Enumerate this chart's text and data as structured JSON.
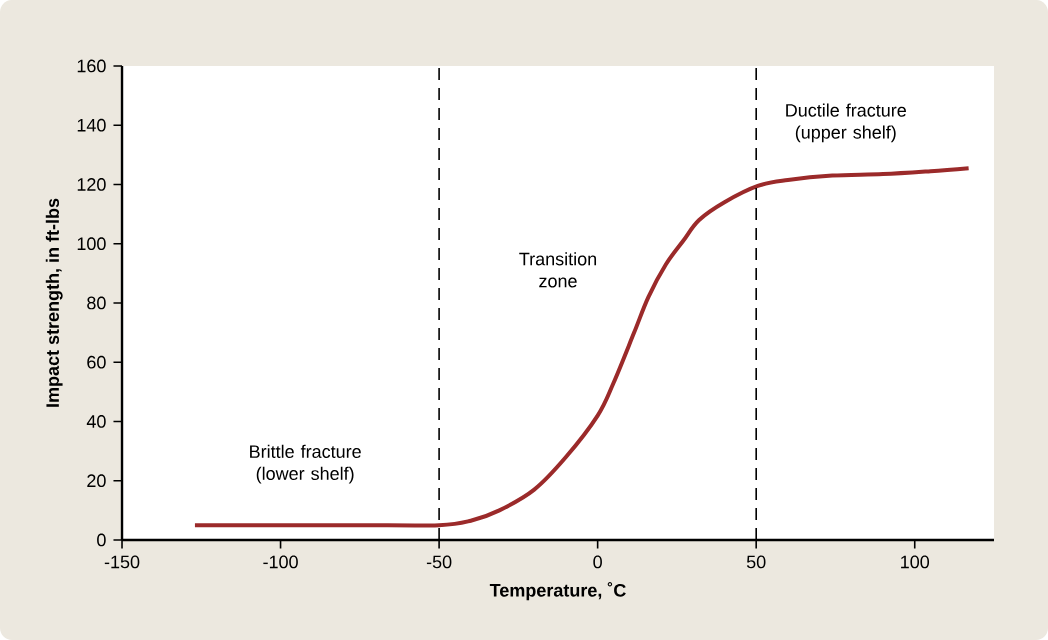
{
  "chart_data": {
    "type": "line",
    "xlabel": "Temperature, ˚C",
    "ylabel": "Impact strength, in ft-lbs",
    "x": [
      -127,
      -100,
      -75,
      -50,
      -40,
      -31,
      -20,
      -10,
      0,
      5,
      11.5,
      16,
      21.5,
      27,
      32,
      40,
      50.5,
      60,
      74,
      90,
      105,
      117
    ],
    "series": [
      {
        "color": "#9b2a2a",
        "values": [
          5,
          5,
          5,
          5,
          6.5,
          10,
          17,
          28,
          42,
          53,
          70,
          82,
          93,
          101,
          108,
          114,
          119.5,
          121.5,
          123,
          123.5,
          124.5,
          125.5
        ]
      }
    ],
    "xlim": [
      -150,
      125
    ],
    "ylim": [
      0,
      160
    ],
    "xticks": [
      -150,
      -100,
      -50,
      0,
      50,
      100
    ],
    "yticks": [
      0,
      20,
      40,
      60,
      80,
      100,
      120,
      140,
      160
    ],
    "grid": false,
    "marker": "none",
    "line_style": "solid",
    "ref_lines": [
      {
        "axis": "x",
        "value": -50,
        "line_style": "dashed",
        "color": "#000000"
      },
      {
        "axis": "x",
        "value": 50,
        "line_style": "dashed",
        "color": "#000000"
      }
    ],
    "annotations": [
      "Brittle fracture (lower shelf)",
      "Transition zone",
      "Ductile fracture (upper shelf)"
    ]
  }
}
